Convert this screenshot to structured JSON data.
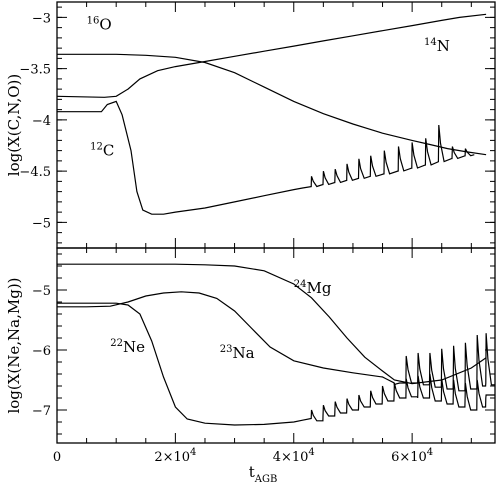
{
  "chart_data": [
    {
      "type": "line",
      "id": "cno",
      "title": "",
      "ylabel": "log(X(C,N,O))",
      "xlim": [
        0,
        74000
      ],
      "ylim": [
        -5.25,
        -2.85
      ],
      "yticks": [
        -5,
        -4.5,
        -4,
        -3.5,
        -3
      ],
      "ytick_labels": [
        "−5",
        "−4.5",
        "−4",
        "−3.5",
        "−3"
      ],
      "annotations": [
        {
          "iso": "16",
          "sym": "O",
          "x": 5000,
          "y": -3.07
        },
        {
          "iso": "14",
          "sym": "N",
          "x": 62000,
          "y": -3.28
        },
        {
          "iso": "12",
          "sym": "C",
          "x": 5600,
          "y": -4.3
        }
      ],
      "series": [
        {
          "key": "O16",
          "x": [
            0,
            5000,
            10000,
            15000,
            20000,
            25000,
            30000,
            35000,
            40000,
            45000,
            50000,
            55000,
            60000,
            63000,
            66000,
            69000,
            72500
          ],
          "y": [
            -3.36,
            -3.36,
            -3.36,
            -3.37,
            -3.39,
            -3.44,
            -3.54,
            -3.68,
            -3.82,
            -3.94,
            -4.04,
            -4.13,
            -4.2,
            -4.24,
            -4.28,
            -4.31,
            -4.34
          ]
        },
        {
          "key": "N14",
          "x": [
            0,
            8000,
            10000,
            12000,
            14000,
            17000,
            20000,
            25000,
            30000,
            35000,
            40000,
            45000,
            50000,
            55000,
            60000,
            65000,
            68000,
            72500
          ],
          "y": [
            -3.77,
            -3.78,
            -3.77,
            -3.7,
            -3.6,
            -3.52,
            -3.48,
            -3.43,
            -3.38,
            -3.33,
            -3.28,
            -3.23,
            -3.18,
            -3.13,
            -3.08,
            -3.03,
            -3.0,
            -2.97
          ]
        },
        {
          "key": "C12",
          "x": [
            0,
            7500,
            8500,
            10000,
            11000,
            12500,
            13500,
            14500,
            16000,
            18000,
            20000,
            25000,
            30000,
            35000,
            40000,
            42000,
            45000,
            50000,
            55000,
            60000,
            63000,
            65000,
            68000,
            70000,
            72500
          ],
          "y": [
            -3.92,
            -3.92,
            -3.85,
            -3.82,
            -3.95,
            -4.3,
            -4.7,
            -4.88,
            -4.92,
            -4.92,
            -4.9,
            -4.86,
            -4.8,
            -4.74,
            -4.68,
            -4.66,
            -4.63,
            -4.58,
            -4.53,
            -4.47,
            -4.43,
            -4.4,
            -4.36,
            -4.34,
            -4.34
          ]
        }
      ],
      "pulses": {
        "on_series": "C12",
        "x": [
          43000,
          45000,
          47000,
          49000,
          51000,
          53000,
          55300,
          57700,
          60000,
          62300,
          64500,
          66800,
          69000
        ],
        "peak": [
          -4.55,
          -4.5,
          -4.48,
          -4.43,
          -4.38,
          -4.35,
          -4.3,
          -4.26,
          -4.22,
          -4.18,
          -4.05,
          -4.26,
          -4.28
        ]
      }
    },
    {
      "type": "line",
      "id": "nenamg",
      "title": "",
      "ylabel": "log(X(Ne,Na,Mg))",
      "xlabel_main": "t",
      "xlabel_sub": "AGB",
      "xlim": [
        0,
        74000
      ],
      "ylim": [
        -7.55,
        -4.3
      ],
      "yticks": [
        -7,
        -6,
        -5
      ],
      "ytick_labels": [
        "−7",
        "−6",
        "−5"
      ],
      "xticks": [
        0,
        20000,
        40000,
        60000
      ],
      "xtick_labels": [
        {
          "main": "0",
          "exp": ""
        },
        {
          "main": "2×10",
          "exp": "4"
        },
        {
          "main": "4×10",
          "exp": "4"
        },
        {
          "main": "6×10",
          "exp": "4"
        }
      ],
      "annotations": [
        {
          "iso": "24",
          "sym": "Mg",
          "x": 40000,
          "y": -4.97
        },
        {
          "iso": "22",
          "sym": "Ne",
          "x": 9000,
          "y": -5.95
        },
        {
          "iso": "23",
          "sym": "Na",
          "x": 27500,
          "y": -6.05
        }
      ],
      "series": [
        {
          "key": "Mg24",
          "x": [
            0,
            10000,
            20000,
            25000,
            30000,
            35000,
            40000,
            43000,
            46000,
            49000,
            52000,
            55000,
            57000,
            60000,
            65000,
            70000,
            72500
          ],
          "y": [
            -4.57,
            -4.57,
            -4.57,
            -4.58,
            -4.6,
            -4.68,
            -4.9,
            -5.13,
            -5.45,
            -5.8,
            -6.12,
            -6.35,
            -6.5,
            -6.56,
            -6.5,
            -6.3,
            -6.13
          ]
        },
        {
          "key": "Na23",
          "x": [
            0,
            5000,
            9000,
            12000,
            15000,
            18000,
            21000,
            24000,
            27000,
            30000,
            33000,
            36000,
            40000,
            45000,
            50000,
            55000,
            57000
          ],
          "y": [
            -5.28,
            -5.28,
            -5.27,
            -5.2,
            -5.1,
            -5.05,
            -5.03,
            -5.05,
            -5.14,
            -5.35,
            -5.65,
            -5.95,
            -6.18,
            -6.3,
            -6.38,
            -6.45,
            -6.55
          ]
        },
        {
          "key": "Ne22",
          "x": [
            0,
            8000,
            10000,
            12000,
            14000,
            16000,
            18000,
            20000,
            22000,
            25000,
            30000,
            35000,
            40000,
            45000,
            50000,
            55000,
            57000
          ],
          "y": [
            -5.22,
            -5.22,
            -5.22,
            -5.25,
            -5.4,
            -5.85,
            -6.45,
            -6.95,
            -7.15,
            -7.22,
            -7.25,
            -7.24,
            -7.2,
            -7.1,
            -7.0,
            -6.88,
            -6.8
          ]
        }
      ],
      "pulses": [
        {
          "on_series": "Na23",
          "x": [
            57000,
            59000,
            61000,
            63000,
            65000,
            67000,
            69000,
            71000,
            72500
          ],
          "peak": [
            -6.58,
            -6.1,
            -6.05,
            -6.05,
            -5.98,
            -5.93,
            -5.88,
            -5.75,
            -5.72
          ],
          "trough": [
            -6.55,
            -6.55,
            -6.58,
            -6.62,
            -6.65,
            -6.68,
            -6.65,
            -6.6,
            -6.58
          ]
        },
        {
          "on_series": "Ne22",
          "x": [
            43000,
            45000,
            47000,
            49000,
            51000,
            53000,
            55000,
            57000,
            59000,
            61000,
            63000,
            65000,
            67000,
            69000,
            71000,
            72500
          ],
          "peak": [
            -7.0,
            -6.92,
            -6.86,
            -6.81,
            -6.75,
            -6.68,
            -6.6,
            -6.55,
            -6.48,
            -6.43,
            -6.4,
            -6.48,
            -6.5,
            -6.55,
            -6.5,
            -6.75
          ],
          "trough": [
            -7.18,
            -7.1,
            -7.05,
            -7.0,
            -6.95,
            -6.9,
            -6.85,
            -6.8,
            -6.78,
            -6.8,
            -6.85,
            -6.9,
            -6.95,
            -7.0,
            -6.95,
            -6.75
          ]
        }
      ]
    }
  ]
}
